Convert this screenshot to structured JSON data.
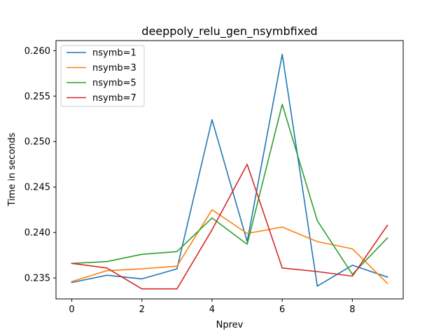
{
  "chart_data": {
    "type": "line",
    "title": "deeppoly_relu_gen_nsymbfixed",
    "xlabel": "Nprev",
    "ylabel": "Time in seconds",
    "x": [
      0,
      1,
      2,
      3,
      4,
      5,
      6,
      7,
      8,
      9
    ],
    "xlim": [
      -0.45,
      9.45
    ],
    "ylim": [
      0.2327,
      0.2611
    ],
    "xticks": [
      0,
      2,
      4,
      6,
      8
    ],
    "yticks": [
      0.235,
      0.24,
      0.245,
      0.25,
      0.255,
      0.26
    ],
    "ytick_labels": [
      "0.235",
      "0.240",
      "0.245",
      "0.250",
      "0.255",
      "0.260"
    ],
    "grid": false,
    "legend_position": "top-left",
    "series": [
      {
        "name": "nsymb=1",
        "color": "#1f77b4",
        "values": [
          0.2345,
          0.2353,
          0.2349,
          0.236,
          0.2524,
          0.239,
          0.2596,
          0.2341,
          0.2364,
          0.2351
        ]
      },
      {
        "name": "nsymb=3",
        "color": "#ff7f0e",
        "values": [
          0.2346,
          0.2358,
          0.236,
          0.2363,
          0.2425,
          0.2399,
          0.2406,
          0.239,
          0.2382,
          0.2344
        ]
      },
      {
        "name": "nsymb=5",
        "color": "#2ca02c",
        "values": [
          0.2366,
          0.2368,
          0.2376,
          0.2379,
          0.2416,
          0.2387,
          0.2541,
          0.2413,
          0.2354,
          0.2394
        ]
      },
      {
        "name": "nsymb=7",
        "color": "#d62728",
        "values": [
          0.2366,
          0.2361,
          0.2338,
          0.2338,
          0.2403,
          0.2475,
          0.2361,
          0.2357,
          0.2352,
          0.2408
        ]
      }
    ]
  }
}
